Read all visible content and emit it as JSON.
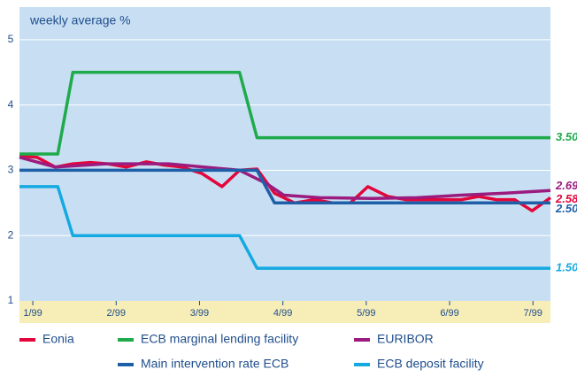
{
  "chart_data": {
    "type": "line",
    "title": "weekly average %",
    "xlim": [
      0.84,
      7.21
    ],
    "xticks": [
      {
        "value": 1,
        "label": "1/99"
      },
      {
        "value": 2,
        "label": "2/99"
      },
      {
        "value": 3,
        "label": "3/99"
      },
      {
        "value": 4,
        "label": "4/99"
      },
      {
        "value": 5,
        "label": "5/99"
      },
      {
        "value": 6,
        "label": "6/99"
      },
      {
        "value": 7,
        "label": "7/99"
      }
    ],
    "ylim": [
      1,
      5.5
    ],
    "yticks": [
      1,
      2,
      3,
      4,
      5
    ],
    "grid": true,
    "series": [
      {
        "name": "Eonia",
        "color": "#e2063b",
        "x": [
          0.84,
          1.05,
          1.27,
          1.48,
          1.69,
          1.9,
          2.12,
          2.36,
          2.57,
          2.79,
          3.03,
          3.27,
          3.48,
          3.69,
          3.9,
          4.14,
          4.38,
          4.6,
          4.81,
          5.02,
          5.26,
          5.48,
          5.71,
          5.93,
          6.14,
          6.35,
          6.56,
          6.78,
          6.99,
          7.21
        ],
        "values": [
          3.22,
          3.2,
          3.05,
          3.1,
          3.12,
          3.1,
          3.05,
          3.13,
          3.08,
          3.05,
          2.95,
          2.75,
          3.0,
          3.02,
          2.65,
          2.5,
          2.55,
          2.5,
          2.5,
          2.75,
          2.6,
          2.55,
          2.55,
          2.55,
          2.55,
          2.6,
          2.55,
          2.55,
          2.38,
          2.58
        ],
        "end_label": "2.58"
      },
      {
        "name": "ECB marginal lending facility",
        "color": "#1faa4b",
        "x": [
          0.84,
          1.3,
          1.48,
          3.48,
          3.69,
          7.21
        ],
        "values": [
          3.25,
          3.25,
          4.5,
          4.5,
          3.5,
          3.5
        ],
        "end_label": "3.50"
      },
      {
        "name": "EURIBOR",
        "color": "#9b1b7e",
        "x": [
          0.84,
          1.27,
          1.88,
          2.63,
          3.05,
          3.48,
          3.8,
          4.01,
          4.44,
          5.07,
          5.61,
          6.14,
          6.67,
          7.21
        ],
        "values": [
          3.2,
          3.05,
          3.1,
          3.1,
          3.05,
          3.0,
          2.8,
          2.62,
          2.58,
          2.57,
          2.58,
          2.62,
          2.65,
          2.69
        ],
        "end_label": "2.69"
      },
      {
        "name": "Main intervention rate ECB",
        "color": "#1f5fa8",
        "x": [
          0.84,
          3.69,
          3.9,
          7.21
        ],
        "values": [
          3.0,
          3.0,
          2.5,
          2.5
        ],
        "end_label": "2.50"
      },
      {
        "name": "ECB deposit facility",
        "color": "#14a9e1",
        "x": [
          0.84,
          1.3,
          1.48,
          3.48,
          3.69,
          7.21
        ],
        "values": [
          2.75,
          2.75,
          2.0,
          2.0,
          1.5,
          1.5
        ],
        "end_label": "1.50"
      }
    ]
  }
}
